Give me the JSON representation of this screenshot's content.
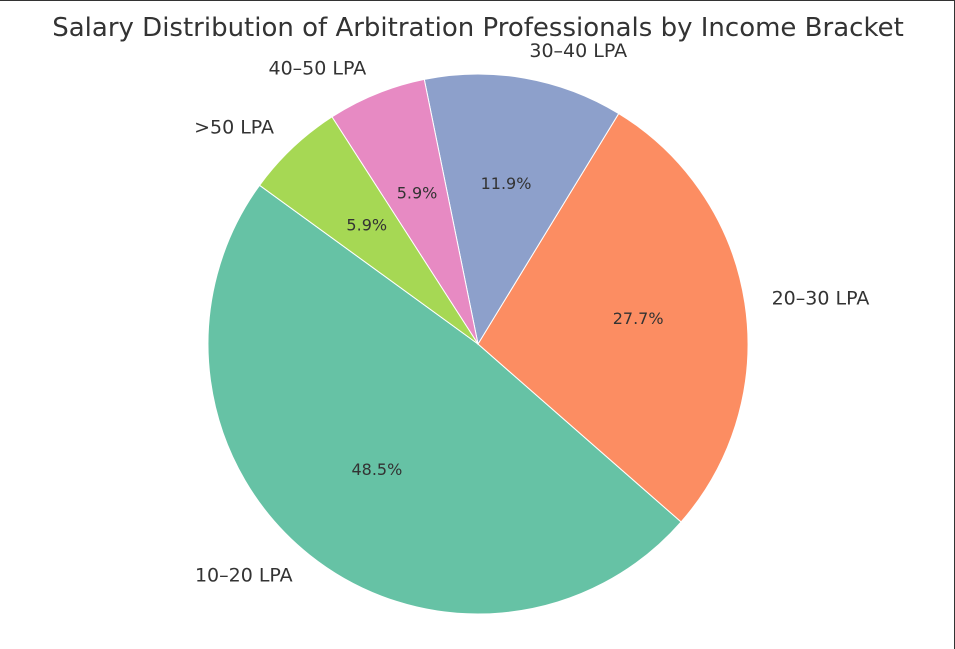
{
  "chart_data": {
    "type": "pie",
    "title": "Salary Distribution of Arbitration Professionals by Income Bracket",
    "start_angle_deg": 144,
    "direction": "counterclockwise",
    "slices": [
      {
        "label": "10–20 LPA",
        "value": 48.5,
        "pct_label": "48.5%",
        "color": "#66c2a5"
      },
      {
        "label": "20–30 LPA",
        "value": 27.7,
        "pct_label": "27.7%",
        "color": "#fc8d62"
      },
      {
        "label": "30–40 LPA",
        "value": 11.9,
        "pct_label": "11.9%",
        "color": "#8da0cb"
      },
      {
        "label": "40–50 LPA",
        "value": 5.9,
        "pct_label": "5.9%",
        "color": "#e78ac3"
      },
      {
        "label": ">50 LPA",
        "value": 5.9,
        "pct_label": "5.9%",
        "color": "#a6d854"
      }
    ]
  }
}
